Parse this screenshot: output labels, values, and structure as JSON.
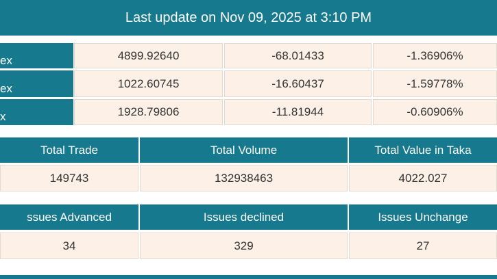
{
  "header": {
    "title": "Last update on Nov 09, 2025 at 3:10 PM"
  },
  "indices": {
    "rows": [
      [
        "ex",
        "4899.92640",
        "-68.01433",
        "-1.36906%"
      ],
      [
        "ex",
        "1022.60745",
        "-16.60437",
        "-1.59778%"
      ],
      [
        "x",
        "1928.79806",
        "-11.81944",
        "-0.60906%"
      ]
    ]
  },
  "totals": {
    "headers": [
      "Total Trade",
      "Total Volume",
      "Total Value in Taka"
    ],
    "values": [
      "149743",
      "132938463",
      "4022.027"
    ]
  },
  "issues": {
    "headers": [
      "ssues Advanced",
      "Issues declined",
      "Issues Unchange"
    ],
    "values": [
      "34",
      "329",
      "27"
    ]
  }
}
